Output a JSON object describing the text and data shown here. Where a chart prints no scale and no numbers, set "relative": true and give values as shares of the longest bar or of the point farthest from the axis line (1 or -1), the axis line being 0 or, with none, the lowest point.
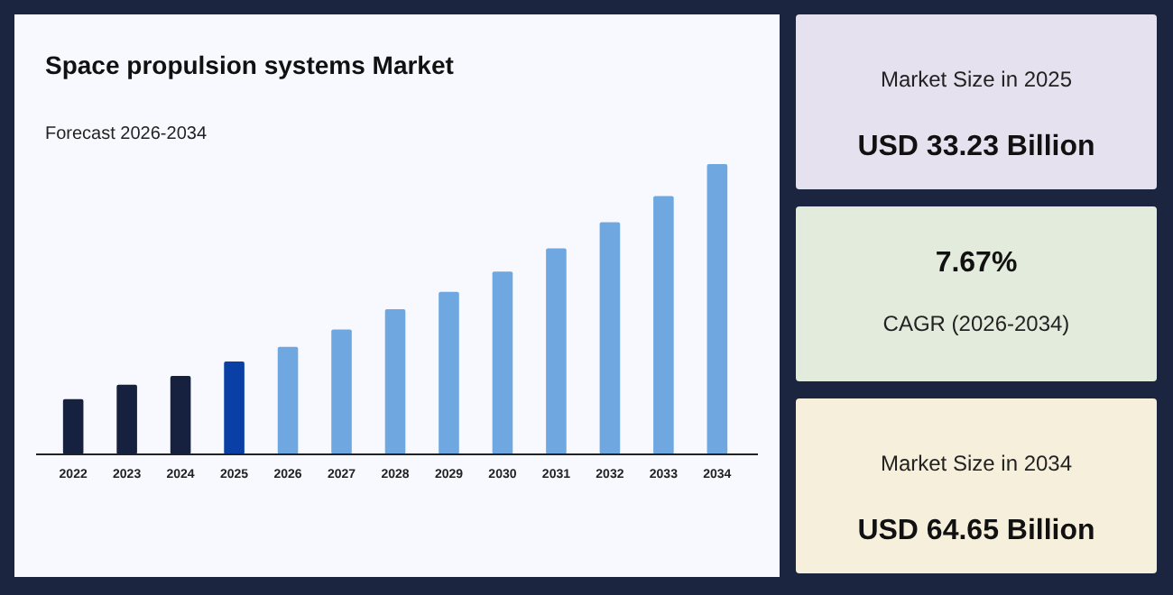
{
  "chart_data": [
    {
      "type": "bar",
      "title": "Space propulsion systems Market",
      "subtitle": "Forecast 2026-2034",
      "categories": [
        "2022",
        "2023",
        "2024",
        "2025",
        "2026",
        "2027",
        "2028",
        "2029",
        "2030",
        "2031",
        "2032",
        "2033",
        "2034"
      ],
      "values": [
        0.19,
        0.24,
        0.27,
        0.32,
        0.37,
        0.43,
        0.5,
        0.56,
        0.63,
        0.71,
        0.8,
        0.89,
        1
      ],
      "colors": [
        "#16213f",
        "#16213f",
        "#16213f",
        "#0a3fa6",
        "#6fa8e0",
        "#6fa8e0",
        "#6fa8e0",
        "#6fa8e0",
        "#6fa8e0",
        "#6fa8e0",
        "#6fa8e0",
        "#6fa8e0",
        "#6fa8e0"
      ],
      "relative": true
    },
    {
      "type": "other",
      "title": "USD 33.23 Billion",
      "subtitle": "Market Size in 2025"
    },
    {
      "type": "other",
      "title": "7.67%",
      "subtitle": "CAGR (2026-2034)"
    },
    {
      "type": "other",
      "title": "USD 64.65 Billion",
      "subtitle": "Market Size in 2034"
    }
  ]
}
